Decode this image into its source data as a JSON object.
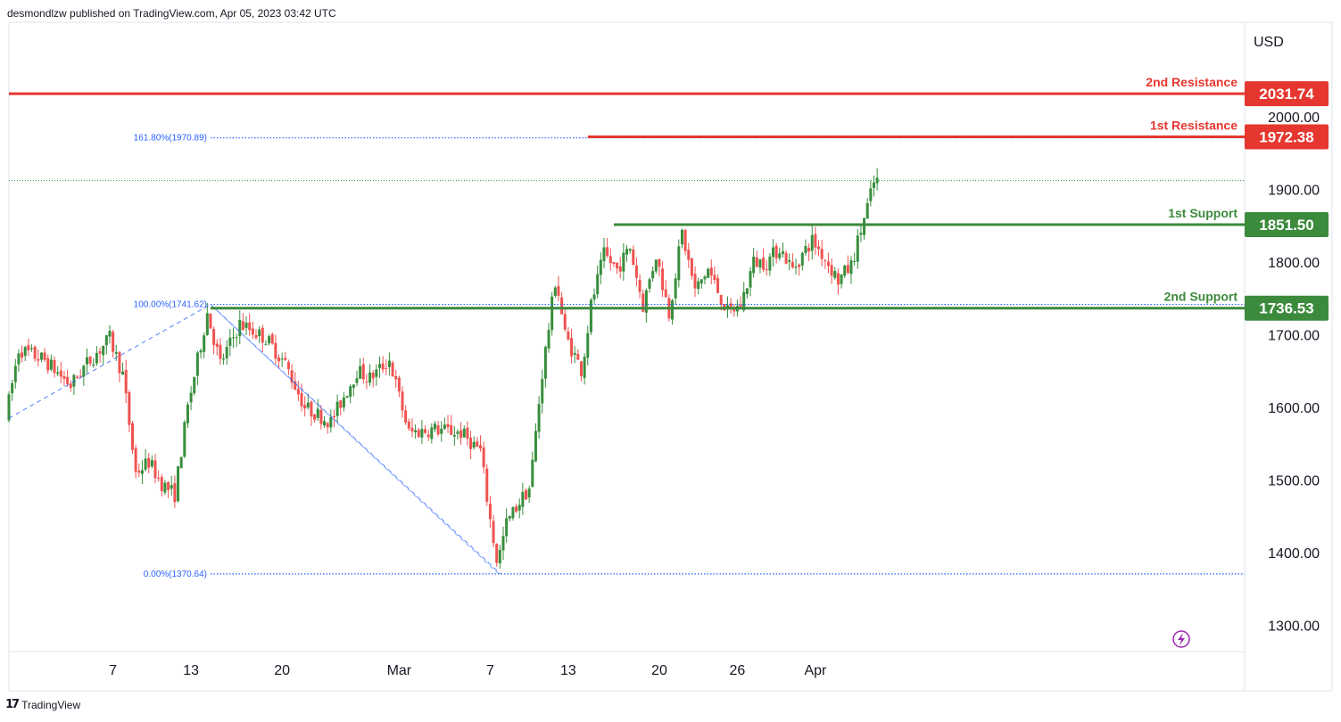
{
  "header": {
    "publisher": "desmondlzw published on TradingView.com, Apr 05, 2023 03:42 UTC"
  },
  "footer": {
    "brand": "TradingView",
    "brand_mark": "17"
  },
  "colors": {
    "up": "#388e3c",
    "down": "#ef5350",
    "resistance": "#e5372f",
    "support": "#3c8a3c",
    "fib": "#2962ff",
    "grid_border": "#e0e3eb",
    "text": "#131722",
    "last_price_dotted": "#388e3c"
  },
  "chart_data": {
    "type": "candlestick",
    "currency": "USD",
    "y_axis": {
      "label": "USD",
      "range": [
        1265,
        2130
      ],
      "ticks": [
        1300,
        1400,
        1500,
        1600,
        1700,
        1800,
        1900,
        2000
      ]
    },
    "y_tick_labels": [
      "1300.00",
      "1400.00",
      "1500.00",
      "1600.00",
      "1700.00",
      "1800.00",
      "1900.00",
      "2000.00"
    ],
    "x_axis": {
      "range_days": [
        0,
        95
      ],
      "ticks": [
        {
          "day": 8,
          "label": "7"
        },
        {
          "day": 14,
          "label": "13"
        },
        {
          "day": 21,
          "label": "20"
        },
        {
          "day": 30,
          "label": "Mar"
        },
        {
          "day": 37,
          "label": "7"
        },
        {
          "day": 43,
          "label": "13"
        },
        {
          "day": 50,
          "label": "20"
        },
        {
          "day": 56,
          "label": "26"
        },
        {
          "day": 62,
          "label": "Apr"
        }
      ]
    },
    "levels": [
      {
        "name": "2nd Resistance",
        "value": 2031.74,
        "value_label": "2031.74",
        "type": "resistance",
        "from_day": 0
      },
      {
        "name": "1st Resistance",
        "value": 1972.38,
        "value_label": "1972.38",
        "type": "resistance",
        "from_day": 44.5
      },
      {
        "name": "1st Support",
        "value": 1851.5,
        "value_label": "1851.50",
        "type": "support",
        "from_day": 46.5
      },
      {
        "name": "2nd Support",
        "value": 1736.53,
        "value_label": "1736.53",
        "type": "support",
        "from_day": 15.5
      }
    ],
    "fib_levels": [
      {
        "label": "161.80%(1970.89)",
        "value": 1970.89,
        "from_day": 15.5
      },
      {
        "label": "100.00%(1741.62)",
        "value": 1741.62,
        "from_day": 15.5
      },
      {
        "label": "0.00%(1370.64)",
        "value": 1370.64,
        "from_day": 15.5
      }
    ],
    "fib_trend": [
      {
        "day": 0,
        "price": 1585
      },
      {
        "day": 15.5,
        "price": 1741.62
      },
      {
        "day": 37.8,
        "price": 1370.64
      }
    ],
    "last_price": 1912,
    "key_points": [
      {
        "day": 0,
        "price": 1585
      },
      {
        "day": 1,
        "price": 1680
      },
      {
        "day": 3,
        "price": 1665
      },
      {
        "day": 5,
        "price": 1630
      },
      {
        "day": 6,
        "price": 1655
      },
      {
        "day": 8,
        "price": 1695
      },
      {
        "day": 9,
        "price": 1645
      },
      {
        "day": 10,
        "price": 1510
      },
      {
        "day": 11,
        "price": 1525
      },
      {
        "day": 12,
        "price": 1495
      },
      {
        "day": 13,
        "price": 1480
      },
      {
        "day": 14,
        "price": 1600
      },
      {
        "day": 15.5,
        "price": 1730
      },
      {
        "day": 16.5,
        "price": 1660
      },
      {
        "day": 18,
        "price": 1715
      },
      {
        "day": 19,
        "price": 1705
      },
      {
        "day": 20,
        "price": 1695
      },
      {
        "day": 21.5,
        "price": 1660
      },
      {
        "day": 23,
        "price": 1600
      },
      {
        "day": 25,
        "price": 1580
      },
      {
        "day": 27,
        "price": 1650
      },
      {
        "day": 28,
        "price": 1640
      },
      {
        "day": 29.5,
        "price": 1665
      },
      {
        "day": 31,
        "price": 1565
      },
      {
        "day": 33,
        "price": 1570
      },
      {
        "day": 35,
        "price": 1565
      },
      {
        "day": 36.5,
        "price": 1540
      },
      {
        "day": 37.2,
        "price": 1450
      },
      {
        "day": 37.8,
        "price": 1385
      },
      {
        "day": 38.5,
        "price": 1440
      },
      {
        "day": 39.5,
        "price": 1470
      },
      {
        "day": 40.3,
        "price": 1490
      },
      {
        "day": 41.2,
        "price": 1640
      },
      {
        "day": 42.3,
        "price": 1780
      },
      {
        "day": 43,
        "price": 1700
      },
      {
        "day": 44.3,
        "price": 1650
      },
      {
        "day": 45,
        "price": 1740
      },
      {
        "day": 46,
        "price": 1810
      },
      {
        "day": 47,
        "price": 1790
      },
      {
        "day": 48,
        "price": 1820
      },
      {
        "day": 49,
        "price": 1740
      },
      {
        "day": 50,
        "price": 1810
      },
      {
        "day": 51,
        "price": 1730
      },
      {
        "day": 52,
        "price": 1840
      },
      {
        "day": 53,
        "price": 1760
      },
      {
        "day": 54,
        "price": 1790
      },
      {
        "day": 55.5,
        "price": 1730
      },
      {
        "day": 56.5,
        "price": 1740
      },
      {
        "day": 57.5,
        "price": 1800
      },
      {
        "day": 58.5,
        "price": 1800
      },
      {
        "day": 59.5,
        "price": 1820
      },
      {
        "day": 60.5,
        "price": 1790
      },
      {
        "day": 62,
        "price": 1830
      },
      {
        "day": 63,
        "price": 1805
      },
      {
        "day": 64,
        "price": 1775
      },
      {
        "day": 65,
        "price": 1795
      },
      {
        "day": 66,
        "price": 1860
      },
      {
        "day": 66.8,
        "price": 1912
      }
    ]
  }
}
